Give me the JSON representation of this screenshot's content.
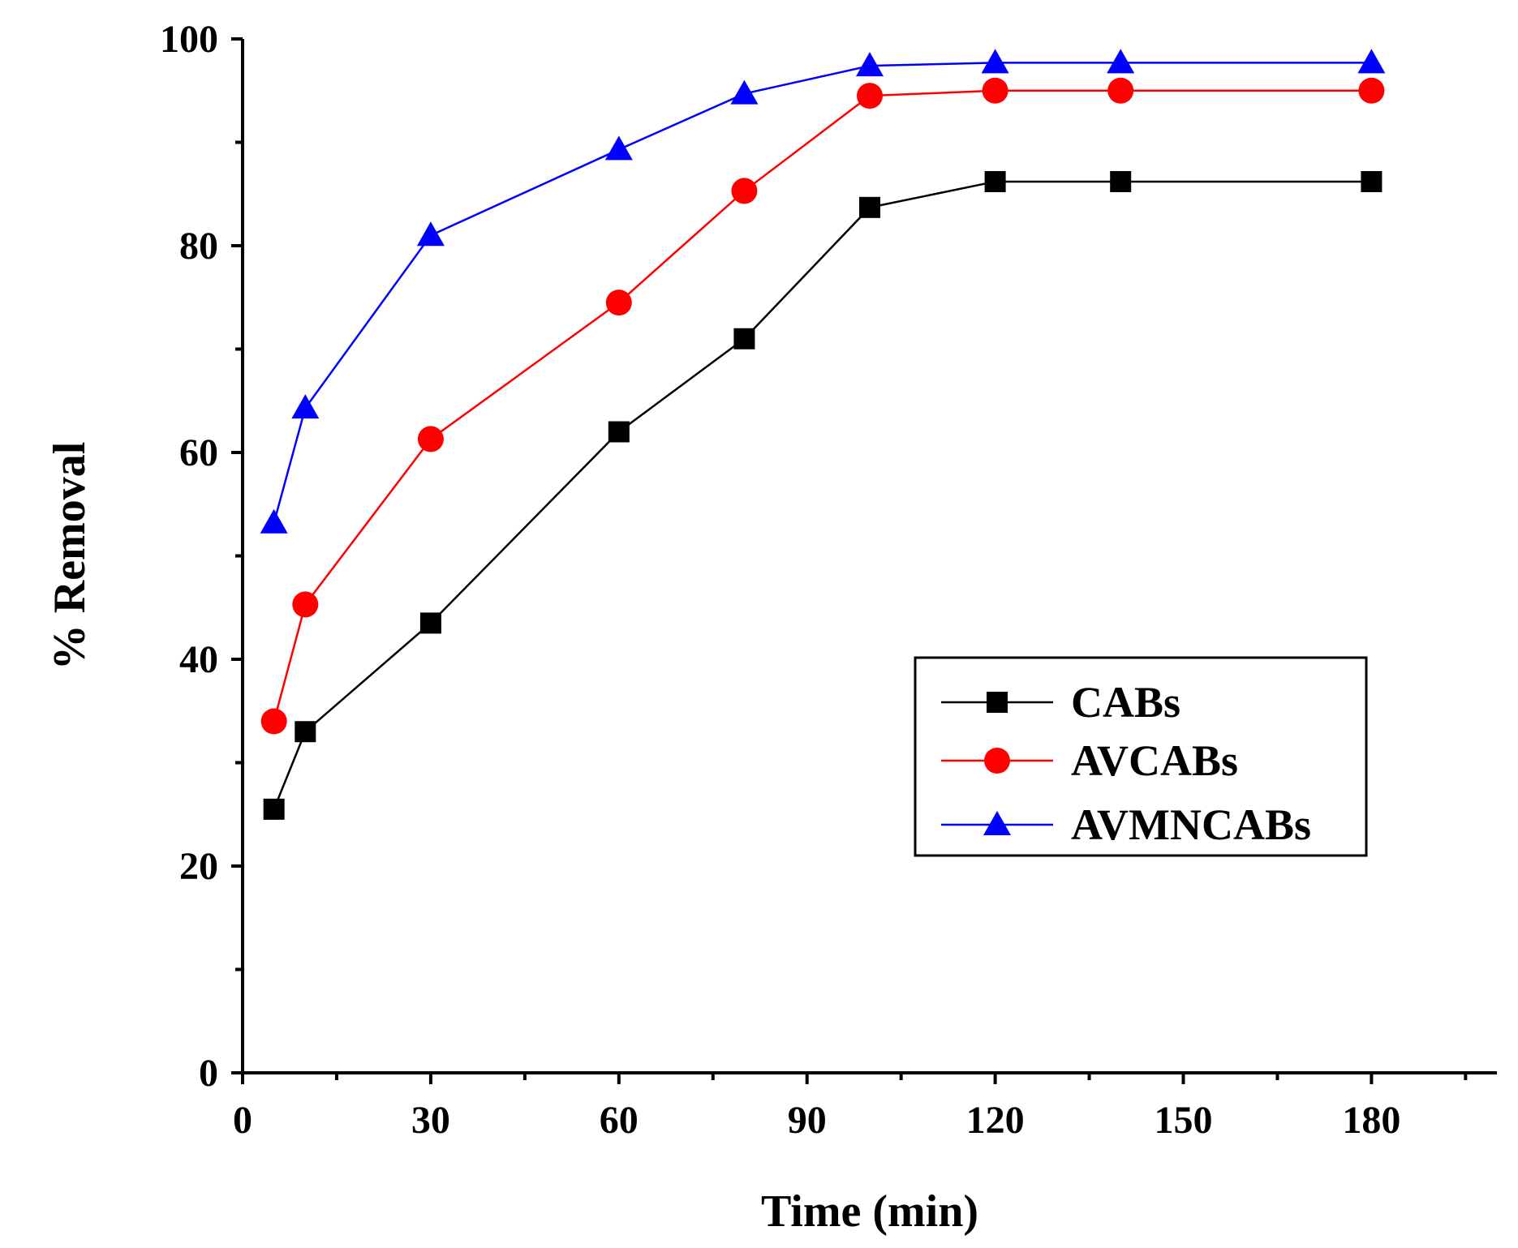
{
  "chart_data": {
    "type": "line",
    "title": "",
    "xlabel": "Time (min)",
    "ylabel": "% Removal",
    "xlim": [
      0,
      200
    ],
    "ylim": [
      0,
      100
    ],
    "xticks_major": [
      0,
      30,
      60,
      90,
      120,
      150,
      180
    ],
    "xticks_major_labels": [
      "0",
      "30",
      "60",
      "90",
      "120",
      "150",
      "180"
    ],
    "xticks_minor": [
      15,
      45,
      75,
      105,
      135,
      165,
      195
    ],
    "yticks_major": [
      0,
      20,
      40,
      60,
      80,
      100
    ],
    "yticks_major_labels": [
      "0",
      "20",
      "40",
      "60",
      "80",
      "100"
    ],
    "yticks_minor": [
      10,
      30,
      50,
      70,
      90
    ],
    "grid": false,
    "legend_position": "center-right",
    "x": [
      5,
      10,
      30,
      60,
      80,
      100,
      120,
      140,
      180
    ],
    "series": [
      {
        "name": "CABs",
        "marker": "square",
        "color": "#000000",
        "values": [
          25.5,
          33.0,
          43.5,
          62.0,
          71.0,
          83.7,
          86.2,
          86.2,
          86.2
        ]
      },
      {
        "name": "AVCABs",
        "marker": "circle",
        "color": "#ff0000",
        "values": [
          34.0,
          45.3,
          61.3,
          74.5,
          85.3,
          94.5,
          95.0,
          95.0,
          95.0
        ]
      },
      {
        "name": "AVMNCABs",
        "marker": "triangle",
        "color": "#0000ff",
        "values": [
          53.2,
          64.3,
          81.0,
          89.3,
          94.7,
          97.4,
          97.7,
          97.7,
          97.7
        ]
      }
    ]
  }
}
